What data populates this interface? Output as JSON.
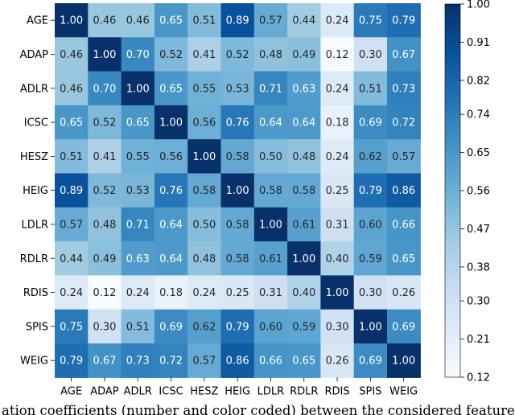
{
  "chart_data": {
    "type": "heatmap",
    "rows": [
      "AGE",
      "ADAP",
      "ADLR",
      "ICSC",
      "HESZ",
      "HEIG",
      "LDLR",
      "RDLR",
      "RDIS",
      "SPIS",
      "WEIG"
    ],
    "cols": [
      "AGE",
      "ADAP",
      "ADLR",
      "ICSC",
      "HESZ",
      "HEIG",
      "LDLR",
      "RDLR",
      "RDIS",
      "SPIS",
      "WEIG"
    ],
    "values": [
      [
        1.0,
        0.46,
        0.46,
        0.65,
        0.51,
        0.89,
        0.57,
        0.44,
        0.24,
        0.75,
        0.79
      ],
      [
        0.46,
        1.0,
        0.7,
        0.52,
        0.41,
        0.52,
        0.48,
        0.49,
        0.12,
        0.3,
        0.67
      ],
      [
        0.46,
        0.7,
        1.0,
        0.65,
        0.55,
        0.53,
        0.71,
        0.63,
        0.24,
        0.51,
        0.73
      ],
      [
        0.65,
        0.52,
        0.65,
        1.0,
        0.56,
        0.76,
        0.64,
        0.64,
        0.18,
        0.69,
        0.72
      ],
      [
        0.51,
        0.41,
        0.55,
        0.56,
        1.0,
        0.58,
        0.5,
        0.48,
        0.24,
        0.62,
        0.57
      ],
      [
        0.89,
        0.52,
        0.53,
        0.76,
        0.58,
        1.0,
        0.58,
        0.58,
        0.25,
        0.79,
        0.86
      ],
      [
        0.57,
        0.48,
        0.71,
        0.64,
        0.5,
        0.58,
        1.0,
        0.61,
        0.31,
        0.6,
        0.66
      ],
      [
        0.44,
        0.49,
        0.63,
        0.64,
        0.48,
        0.58,
        0.61,
        1.0,
        0.4,
        0.59,
        0.65
      ],
      [
        0.24,
        0.12,
        0.24,
        0.18,
        0.24,
        0.25,
        0.31,
        0.4,
        1.0,
        0.3,
        0.26
      ],
      [
        0.75,
        0.3,
        0.51,
        0.69,
        0.62,
        0.79,
        0.6,
        0.59,
        0.3,
        1.0,
        0.69
      ],
      [
        0.79,
        0.67,
        0.73,
        0.72,
        0.57,
        0.86,
        0.66,
        0.65,
        0.26,
        0.69,
        1.0
      ]
    ],
    "value_labels": [
      [
        "1.00",
        "0.46",
        "0.46",
        "0.65",
        "0.51",
        "0.89",
        "0.57",
        "0.44",
        "0.24",
        "0.75",
        "0.79"
      ],
      [
        "0.46",
        "1.00",
        "0.70",
        "0.52",
        "0.41",
        "0.52",
        "0.48",
        "0.49",
        "0.12",
        "0.30",
        "0.67"
      ],
      [
        "0.46",
        "0.70",
        "1.00",
        "0.65",
        "0.55",
        "0.53",
        "0.71",
        "0.63",
        "0.24",
        "0.51",
        "0.73"
      ],
      [
        "0.65",
        "0.52",
        "0.65",
        "1.00",
        "0.56",
        "0.76",
        "0.64",
        "0.64",
        "0.18",
        "0.69",
        "0.72"
      ],
      [
        "0.51",
        "0.41",
        "0.55",
        "0.56",
        "1.00",
        "0.58",
        "0.50",
        "0.48",
        "0.24",
        "0.62",
        "0.57"
      ],
      [
        "0.89",
        "0.52",
        "0.53",
        "0.76",
        "0.58",
        "1.00",
        "0.58",
        "0.58",
        "0.25",
        "0.79",
        "0.86"
      ],
      [
        "0.57",
        "0.48",
        "0.71",
        "0.64",
        "0.50",
        "0.58",
        "1.00",
        "0.61",
        "0.31",
        "0.60",
        "0.66"
      ],
      [
        "0.44",
        "0.49",
        "0.63",
        "0.64",
        "0.48",
        "0.58",
        "0.61",
        "1.00",
        "0.40",
        "0.59",
        "0.65"
      ],
      [
        "0.24",
        "0.12",
        "0.24",
        "0.18",
        "0.24",
        "0.25",
        "0.31",
        "0.40",
        "1.00",
        "0.30",
        "0.26"
      ],
      [
        "0.75",
        "0.30",
        "0.51",
        "0.69",
        "0.62",
        "0.79",
        "0.60",
        "0.59",
        "0.30",
        "1.00",
        "0.69"
      ],
      [
        "0.79",
        "0.67",
        "0.73",
        "0.72",
        "0.57",
        "0.86",
        "0.66",
        "0.65",
        "0.26",
        "0.69",
        "1.00"
      ]
    ],
    "colorbar": {
      "range": [
        0.12,
        1.0
      ],
      "ticks": [
        "1.00",
        "0.91",
        "0.82",
        "0.74",
        "0.65",
        "0.56",
        "0.47",
        "0.38",
        "0.30",
        "0.21",
        "0.12"
      ],
      "colormap": "Blues",
      "colors": [
        "#f7fbff",
        "#deebf7",
        "#c6dbef",
        "#9ecae1",
        "#6baed6",
        "#4292c6",
        "#2171b5",
        "#08519c",
        "#08306b"
      ]
    },
    "xlabel": "",
    "ylabel": ""
  },
  "caption": "ation coefficients (number and color coded) between the considered features"
}
